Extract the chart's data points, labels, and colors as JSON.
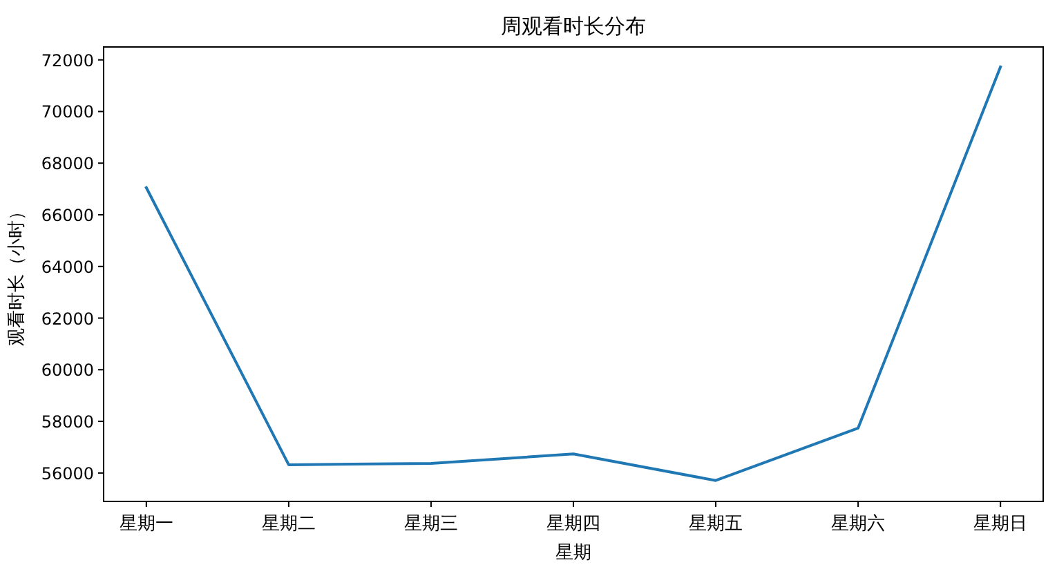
{
  "chart_data": {
    "type": "line",
    "title": "周观看时长分布",
    "xlabel": "星期",
    "ylabel": "观看时长（小时）",
    "categories": [
      "星期一",
      "星期二",
      "星期三",
      "星期四",
      "星期五",
      "星期六",
      "星期日"
    ],
    "series": [
      {
        "color": "#1f77b4",
        "values": [
          67050,
          56320,
          56370,
          56740,
          55710,
          57740,
          71730
        ]
      }
    ],
    "ylim": [
      54900,
      72500
    ],
    "yticks": [
      56000,
      58000,
      60000,
      62000,
      64000,
      66000,
      68000,
      70000,
      72000
    ],
    "grid": false,
    "marker": "none",
    "line_style": "solid"
  }
}
